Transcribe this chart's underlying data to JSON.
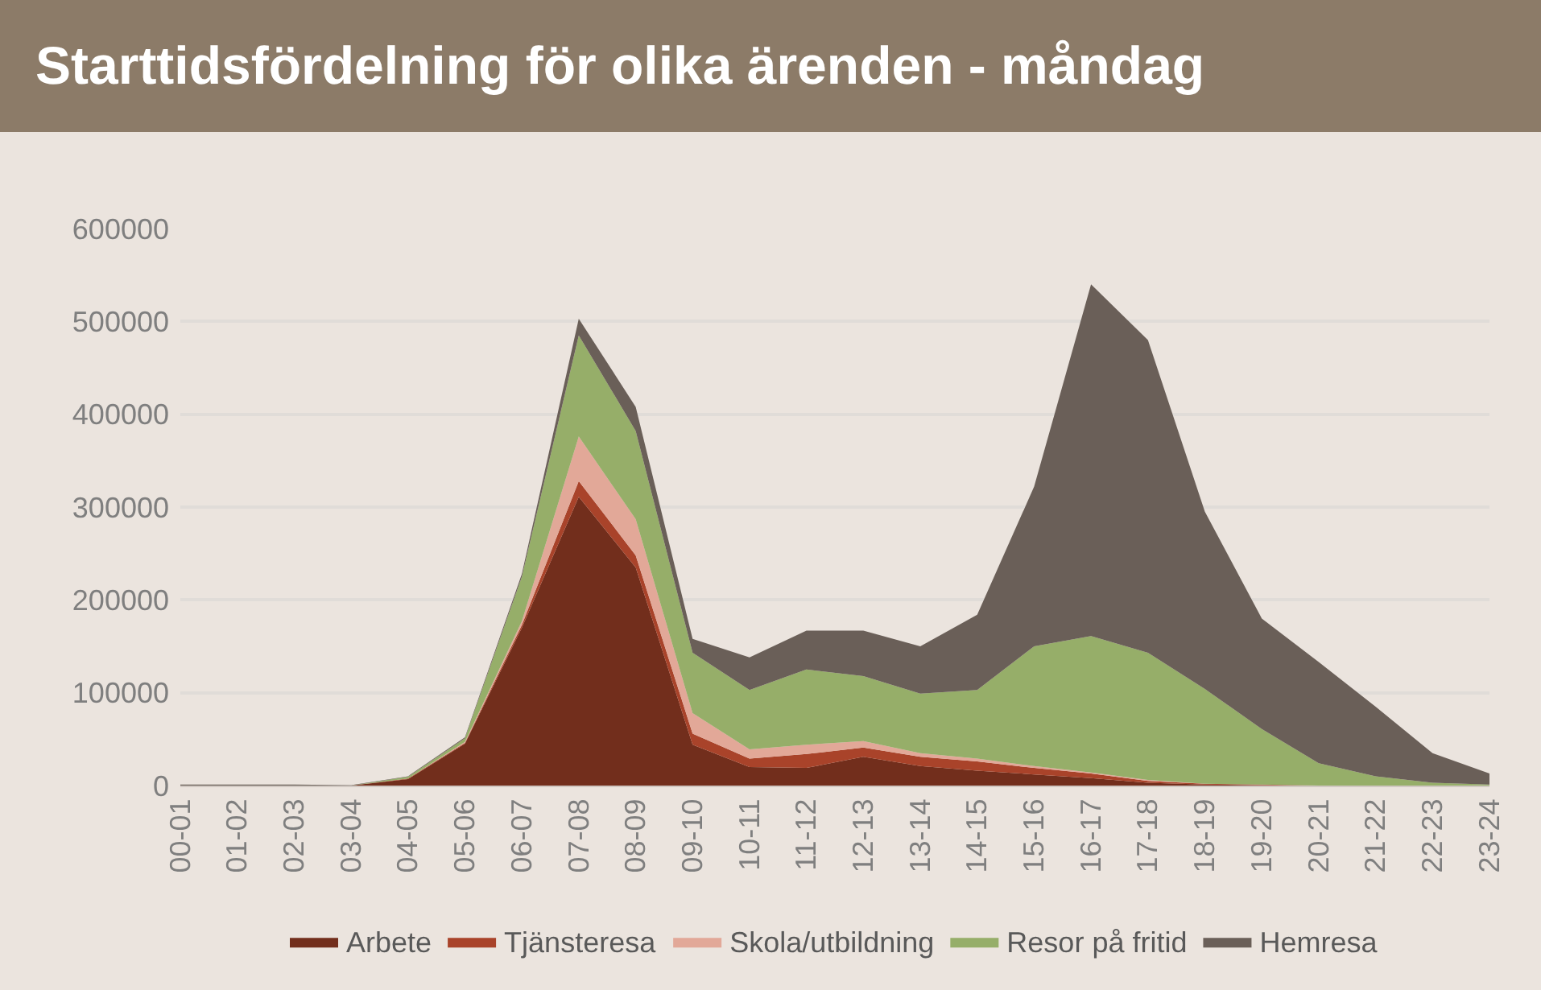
{
  "chart_data": {
    "type": "area",
    "title": "Starttidsfördelning för olika ärenden - måndag",
    "stacked": true,
    "categories": [
      "00-01",
      "01-02",
      "02-03",
      "03-04",
      "04-05",
      "05-06",
      "06-07",
      "07-08",
      "08-09",
      "09-10",
      "10-11",
      "11-12",
      "12-13",
      "13-14",
      "14-15",
      "15-16",
      "16-17",
      "17-18",
      "18-19",
      "19-20",
      "20-21",
      "21-22",
      "22-23",
      "23-24"
    ],
    "series": [
      {
        "name": "Arbete",
        "color": "#722e1c",
        "values": [
          0,
          0,
          0,
          0,
          7000,
          45000,
          170000,
          311000,
          235000,
          44000,
          20000,
          19000,
          31000,
          21000,
          16000,
          12000,
          8000,
          3000,
          1000,
          500,
          0,
          0,
          0,
          0
        ]
      },
      {
        "name": "Tjänsteresa",
        "color": "#a9432a",
        "values": [
          0,
          0,
          0,
          0,
          500,
          1000,
          3000,
          17000,
          13000,
          12000,
          9000,
          15000,
          10000,
          10000,
          10000,
          7000,
          5000,
          2000,
          1000,
          500,
          0,
          0,
          0,
          0
        ]
      },
      {
        "name": "Skola/utbildning",
        "color": "#e2a898",
        "values": [
          0,
          0,
          0,
          0,
          0,
          1000,
          4000,
          48000,
          39000,
          22000,
          10000,
          10000,
          7000,
          4000,
          3000,
          2000,
          1000,
          1000,
          0,
          0,
          0,
          0,
          0,
          0
        ]
      },
      {
        "name": "Resor på fritid",
        "color": "#96ae69",
        "values": [
          0,
          0,
          0,
          0,
          2000,
          4000,
          48000,
          109000,
          95000,
          65000,
          64000,
          81000,
          70000,
          64000,
          74000,
          129000,
          147000,
          137000,
          102000,
          60000,
          24000,
          10000,
          3000,
          1000
        ]
      },
      {
        "name": "Hemresa",
        "color": "#6a5f58",
        "values": [
          1000,
          1000,
          1000,
          500,
          500,
          1000,
          3000,
          18000,
          26000,
          15000,
          35000,
          42000,
          49000,
          51000,
          81000,
          172000,
          379000,
          337000,
          191000,
          119000,
          109000,
          75000,
          32000,
          12000
        ]
      }
    ],
    "ylim": [
      0,
      600000
    ],
    "yticks": [
      0,
      100000,
      200000,
      300000,
      400000,
      500000,
      600000
    ],
    "grid": "y",
    "legend": "bottom"
  }
}
